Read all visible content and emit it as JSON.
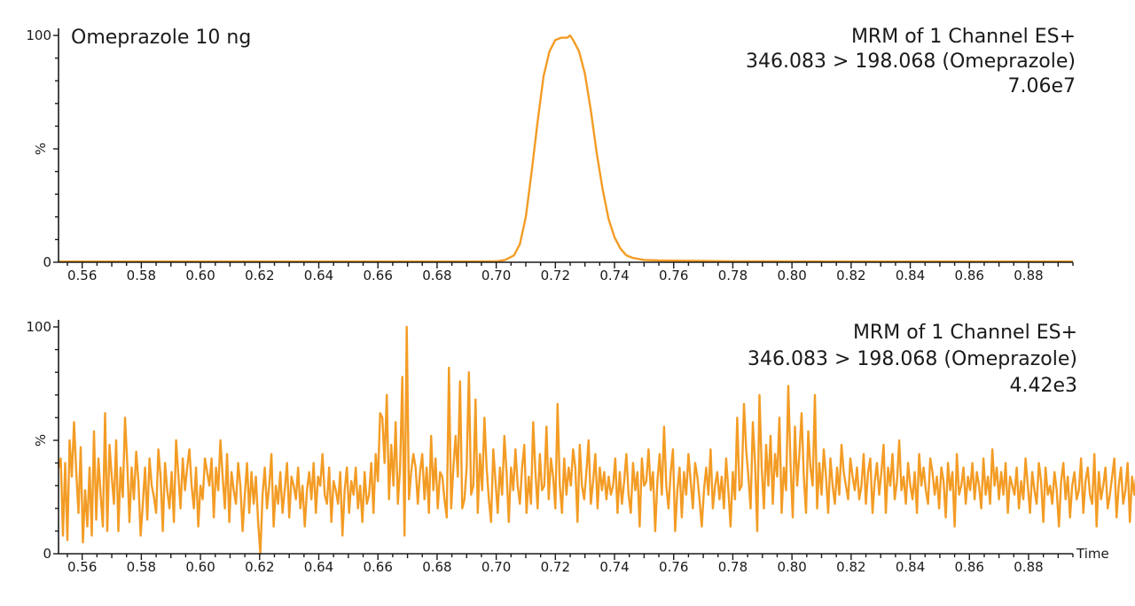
{
  "colors": {
    "trace": "#f39c25",
    "axis": "#1a1a1a"
  },
  "chart_data": [
    {
      "type": "line",
      "sample_label": "Omeprazole 10 ng",
      "title_lines": [
        "MRM of 1 Channel ES+",
        "346.083 > 198.068 (Omeprazole)",
        "7.06e7"
      ],
      "ylabel": "%",
      "xlabel": "",
      "xlim": [
        0.552,
        0.895
      ],
      "ylim": [
        0,
        100
      ],
      "xticks": [
        "0.56",
        "0.58",
        "0.60",
        "0.62",
        "0.64",
        "0.66",
        "0.68",
        "0.70",
        "0.72",
        "0.74",
        "0.76",
        "0.78",
        "0.80",
        "0.82",
        "0.84",
        "0.86",
        "0.88"
      ],
      "yticks": [
        "0",
        "100"
      ],
      "series": [
        {
          "x": [
            0.552,
            0.6,
            0.65,
            0.69,
            0.7,
            0.703,
            0.706,
            0.708,
            0.71,
            0.712,
            0.714,
            0.716,
            0.718,
            0.72,
            0.722,
            0.724,
            0.725,
            0.726,
            0.728,
            0.73,
            0.732,
            0.734,
            0.736,
            0.738,
            0.74,
            0.742,
            0.744,
            0.746,
            0.748,
            0.75,
            0.755,
            0.76,
            0.78,
            0.82,
            0.86,
            0.895
          ],
          "y": [
            0.3,
            0.3,
            0.3,
            0.3,
            0.4,
            1,
            3,
            8,
            20,
            40,
            62,
            82,
            93,
            98,
            99,
            99,
            100,
            98,
            93,
            83,
            67,
            48,
            32,
            19,
            11,
            6,
            3,
            2,
            1.5,
            1,
            0.8,
            0.7,
            0.4,
            0.3,
            0.3,
            0.3
          ]
        }
      ]
    },
    {
      "type": "line",
      "title_lines": [
        "MRM of 1 Channel ES+",
        "346.083 > 198.068 (Omeprazole)",
        "4.42e3"
      ],
      "ylabel": "%",
      "xlabel": "Time",
      "xlim": [
        0.552,
        0.895
      ],
      "ylim": [
        0,
        100
      ],
      "xticks": [
        "0.56",
        "0.58",
        "0.60",
        "0.62",
        "0.64",
        "0.66",
        "0.68",
        "0.70",
        "0.72",
        "0.74",
        "0.76",
        "0.78",
        "0.80",
        "0.82",
        "0.84",
        "0.86",
        "0.88"
      ],
      "yticks": [
        "0",
        "100"
      ],
      "series": [
        {
          "x_start": 0.552,
          "x_step": 0.00075,
          "y": [
            38,
            42,
            8,
            40,
            6,
            50,
            34,
            58,
            36,
            18,
            47,
            5,
            28,
            12,
            38,
            8,
            54,
            15,
            42,
            26,
            12,
            62,
            10,
            48,
            34,
            22,
            50,
            10,
            38,
            25,
            60,
            40,
            14,
            38,
            24,
            45,
            32,
            8,
            22,
            38,
            15,
            42,
            30,
            25,
            18,
            46,
            34,
            10,
            40,
            28,
            20,
            36,
            14,
            50,
            35,
            20,
            42,
            28,
            38,
            46,
            30,
            20,
            38,
            12,
            30,
            24,
            42,
            36,
            30,
            42,
            16,
            38,
            28,
            50,
            34,
            20,
            44,
            14,
            36,
            28,
            22,
            40,
            30,
            10,
            26,
            40,
            18,
            36,
            22,
            34,
            14,
            0,
            26,
            38,
            20,
            30,
            44,
            12,
            30,
            22,
            36,
            18,
            28,
            40,
            16,
            34,
            30,
            24,
            38,
            20,
            30,
            12,
            28,
            36,
            24,
            40,
            18,
            34,
            30,
            44,
            26,
            22,
            38,
            14,
            32,
            28,
            22,
            36,
            8,
            28,
            38,
            18,
            32,
            26,
            38,
            20,
            30,
            14,
            36,
            22,
            26,
            40,
            18,
            44,
            32,
            62,
            60,
            40,
            70,
            24,
            48,
            30,
            58,
            22,
            38,
            78,
            8,
            100,
            24,
            36,
            44,
            38,
            22,
            36,
            44,
            24,
            38,
            18,
            52,
            28,
            42,
            20,
            36,
            34,
            24,
            16,
            82,
            20,
            38,
            52,
            34,
            76,
            20,
            24,
            38,
            80,
            26,
            30,
            68,
            18,
            44,
            28,
            60,
            38,
            24,
            14,
            46,
            32,
            18,
            38,
            26,
            52,
            36,
            14,
            38,
            28,
            46,
            30,
            22,
            38,
            48,
            18,
            34,
            22,
            58,
            36,
            20,
            44,
            28,
            30,
            56,
            24,
            42,
            34,
            20,
            66,
            30,
            18,
            42,
            26,
            38,
            30,
            46,
            38,
            14,
            48,
            30,
            24,
            36,
            50,
            22,
            32,
            44,
            20,
            38,
            28,
            36,
            24,
            34,
            26,
            30,
            42,
            18,
            36,
            22,
            32,
            44,
            26,
            18,
            40,
            28,
            36,
            12,
            42,
            30,
            32,
            46,
            28,
            36,
            10,
            32,
            44,
            26,
            56,
            30,
            20,
            36,
            46,
            10,
            28,
            38,
            16,
            36,
            26,
            44,
            32,
            20,
            40,
            34,
            24,
            12,
            28,
            38,
            26,
            46,
            20,
            30,
            36,
            24,
            34,
            20,
            42,
            28,
            12,
            36,
            24,
            60,
            28,
            30,
            66,
            46,
            34,
            20,
            58,
            40,
            10,
            70,
            38,
            20,
            48,
            30,
            52,
            22,
            44,
            34,
            60,
            18,
            38,
            28,
            74,
            40,
            16,
            56,
            30,
            44,
            62,
            34,
            18,
            54,
            38,
            30,
            70,
            20,
            40,
            26,
            46,
            34,
            18,
            42,
            30,
            22,
            38,
            26,
            48,
            36,
            30,
            24,
            42,
            34,
            28,
            38,
            24,
            30,
            44,
            22,
            36,
            42,
            18,
            32,
            40,
            26,
            36,
            48,
            18,
            38,
            30,
            44,
            24,
            32,
            50,
            28,
            34,
            22,
            40,
            30,
            24,
            36,
            18,
            44,
            30,
            38,
            28,
            22,
            42,
            36,
            26,
            34,
            20,
            38,
            32,
            16,
            40,
            28,
            36,
            12,
            44,
            26,
            30,
            38,
            22,
            34,
            28,
            40,
            24,
            36,
            30,
            20,
            42,
            26,
            34,
            22,
            46,
            30,
            38,
            24,
            36,
            26,
            40,
            18,
            34,
            30,
            26,
            38,
            20,
            32,
            24,
            42,
            30,
            18,
            36,
            28,
            22,
            40,
            32,
            14,
            38,
            26,
            30,
            22,
            36,
            28,
            12,
            32,
            40,
            24,
            34,
            16,
            30,
            36,
            24,
            28,
            42,
            18,
            32,
            38,
            26,
            22,
            44,
            12,
            36,
            24,
            30,
            38,
            20,
            26,
            34,
            42,
            16,
            30,
            38,
            22,
            28,
            40,
            14,
            34,
            26,
            36,
            12,
            30,
            22,
            40,
            28,
            34,
            10,
            36,
            26,
            42,
            24,
            30,
            18,
            38,
            36,
            32
          ]
        }
      ]
    }
  ]
}
